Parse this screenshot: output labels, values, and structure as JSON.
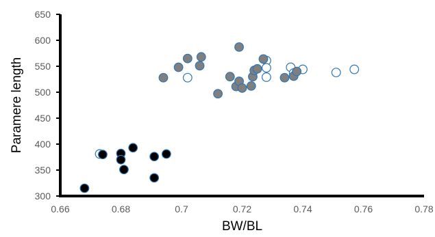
{
  "chart_data": {
    "type": "scatter",
    "xlabel": "BW/BL",
    "ylabel": "Paramere length",
    "xlim": [
      0.66,
      0.78
    ],
    "ylim": [
      300,
      650
    ],
    "x_ticks": [
      "0.66",
      "0.68",
      "0.7",
      "0.72",
      "0.74",
      "0.76",
      "0.78"
    ],
    "y_ticks": [
      "300",
      "350",
      "400",
      "450",
      "500",
      "550",
      "600",
      "650"
    ],
    "grid": false,
    "legend": "none",
    "series": [
      {
        "marker": "open-circle",
        "edge_color": "#2e75b6",
        "fill_color": "#ffffff",
        "points": [
          [
            0.673,
            381
          ],
          [
            0.702,
            528
          ],
          [
            0.728,
            561
          ],
          [
            0.728,
            547
          ],
          [
            0.728,
            529
          ],
          [
            0.736,
            548
          ],
          [
            0.737,
            537
          ],
          [
            0.74,
            544
          ],
          [
            0.751,
            538
          ],
          [
            0.757,
            544
          ]
        ]
      },
      {
        "marker": "filled-circle",
        "edge_color": "#2e75b6",
        "fill_color": "#7f7f7f",
        "points": [
          [
            0.694,
            528
          ],
          [
            0.699,
            548
          ],
          [
            0.702,
            565
          ],
          [
            0.706,
            551
          ],
          [
            0.7065,
            568
          ],
          [
            0.712,
            497
          ],
          [
            0.716,
            530
          ],
          [
            0.718,
            511
          ],
          [
            0.719,
            587
          ],
          [
            0.719,
            521
          ],
          [
            0.72,
            508
          ],
          [
            0.723,
            512
          ],
          [
            0.7235,
            530
          ],
          [
            0.724,
            542
          ],
          [
            0.725,
            545
          ],
          [
            0.727,
            564
          ],
          [
            0.734,
            528
          ],
          [
            0.737,
            531
          ],
          [
            0.738,
            540
          ]
        ]
      },
      {
        "marker": "filled-circle",
        "edge_color": "#2e75b6",
        "fill_color": "#000000",
        "points": [
          [
            0.668,
            315
          ],
          [
            0.674,
            380
          ],
          [
            0.68,
            382
          ],
          [
            0.68,
            370
          ],
          [
            0.681,
            351
          ],
          [
            0.684,
            393
          ],
          [
            0.691,
            376
          ],
          [
            0.691,
            335
          ],
          [
            0.695,
            381
          ]
        ]
      }
    ]
  }
}
